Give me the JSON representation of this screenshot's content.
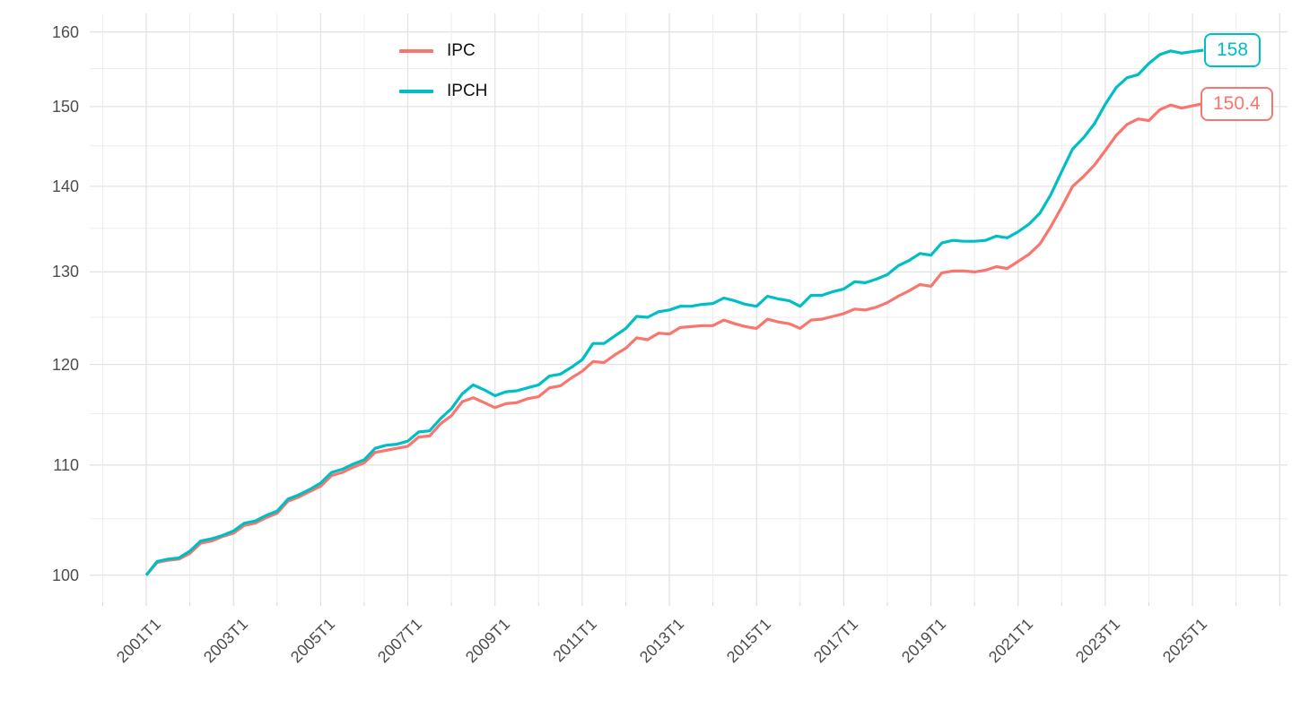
{
  "chart_data": {
    "type": "line",
    "title": "",
    "x_start": "2001T1",
    "frequency": "quarterly",
    "x_tick_labels": [
      "2001T1",
      "2003T1",
      "2005T1",
      "2007T1",
      "2009T1",
      "2011T1",
      "2013T1",
      "2015T1",
      "2017T1",
      "2019T1",
      "2021T1",
      "2023T1",
      "2025T1"
    ],
    "y_ticks": [
      100,
      110,
      120,
      130,
      140,
      150,
      160
    ],
    "y_minor_ticks": [
      105,
      115,
      125,
      135,
      145,
      155
    ],
    "y_scale": "log10",
    "ylim": [
      97.7,
      162.6
    ],
    "grid": true,
    "legend_position": "top-center-inside",
    "background": "#ffffff",
    "grid_color_major": "#e3e3e3",
    "grid_color_minor": "#ededed",
    "axis_text_color": "#4d4d4d",
    "series": [
      {
        "name": "IPC",
        "color": "#F8766D",
        "end_label": "150.4",
        "values": [
          100,
          101.1,
          101.3,
          101.4,
          101.9,
          102.8,
          103,
          103.4,
          103.7,
          104.4,
          104.6,
          105.1,
          105.5,
          106.6,
          107,
          107.5,
          108,
          109,
          109.3,
          109.8,
          110.2,
          111.2,
          111.4,
          111.6,
          111.8,
          112.7,
          112.8,
          114,
          114.8,
          116.2,
          116.6,
          116.1,
          115.6,
          116,
          116.1,
          116.5,
          116.7,
          117.6,
          117.8,
          118.6,
          119.3,
          120.3,
          120.2,
          121,
          121.7,
          122.8,
          122.6,
          123.3,
          123.2,
          123.9,
          124,
          124.1,
          124.1,
          124.7,
          124.3,
          124,
          123.8,
          124.8,
          124.5,
          124.3,
          123.8,
          124.7,
          124.8,
          125.1,
          125.4,
          125.9,
          125.8,
          126.1,
          126.6,
          127.3,
          127.9,
          128.6,
          128.4,
          129.9,
          130.1,
          130.1,
          130,
          130.2,
          130.6,
          130.4,
          131.2,
          132,
          133.2,
          135.2,
          137.5,
          140,
          141.2,
          142.6,
          144.4,
          146.3,
          147.7,
          148.4,
          148.2,
          149.6,
          150.2,
          149.8,
          150.1,
          150.4
        ]
      },
      {
        "name": "IPCH",
        "color": "#00BFC4",
        "end_label": "158",
        "values": [
          100,
          101.2,
          101.4,
          101.5,
          102.1,
          103,
          103.2,
          103.5,
          103.9,
          104.6,
          104.8,
          105.3,
          105.7,
          106.8,
          107.2,
          107.7,
          108.3,
          109.3,
          109.6,
          110.1,
          110.5,
          111.6,
          111.9,
          112,
          112.3,
          113.2,
          113.3,
          114.5,
          115.5,
          117,
          117.9,
          117.4,
          116.8,
          117.2,
          117.3,
          117.6,
          117.9,
          118.8,
          119,
          119.7,
          120.5,
          122.2,
          122.2,
          123,
          123.8,
          125.1,
          125,
          125.6,
          125.8,
          126.2,
          126.2,
          126.4,
          126.5,
          127.1,
          126.8,
          126.4,
          126.2,
          127.3,
          127,
          126.8,
          126.2,
          127.4,
          127.4,
          127.8,
          128.1,
          128.9,
          128.8,
          129.2,
          129.7,
          130.7,
          131.3,
          132.1,
          131.9,
          133.3,
          133.6,
          133.5,
          133.5,
          133.6,
          134.1,
          133.9,
          134.6,
          135.5,
          136.8,
          139,
          141.8,
          144.6,
          146,
          147.8,
          150.3,
          152.5,
          153.8,
          154.2,
          155.7,
          156.9,
          157.4,
          157.1,
          157.3,
          157.5
        ]
      }
    ]
  }
}
